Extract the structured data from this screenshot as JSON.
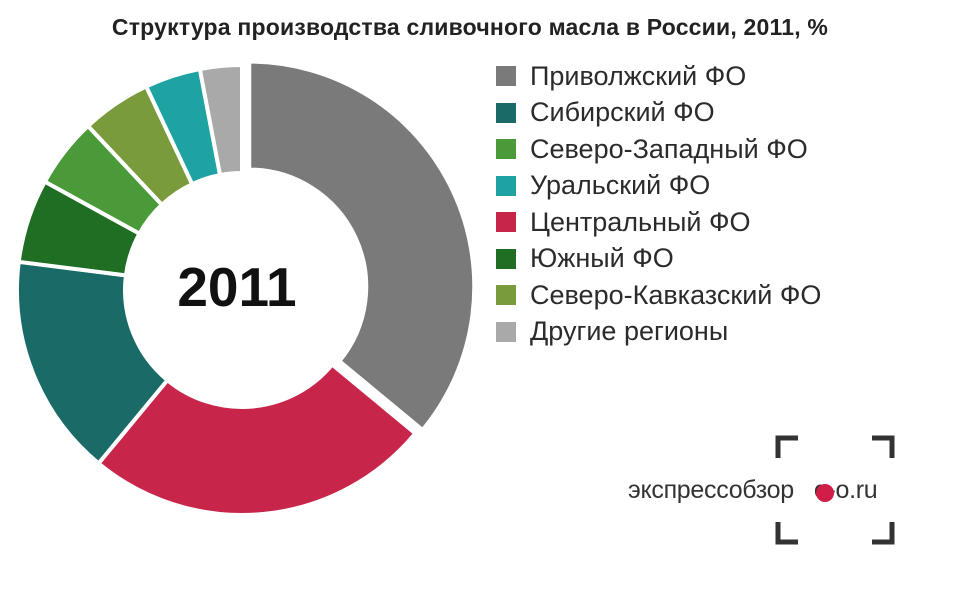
{
  "title": "Структура производства сливочного масла в России, 2011, %",
  "center_label": "2011",
  "logo_text": "экспрессобзор",
  "logo_suffix": "e-o.ru",
  "chart_data": {
    "type": "pie",
    "title": "Структура производства сливочного масла в России, 2011, %",
    "center_label": "2011",
    "legend_position": "right",
    "slices": [
      {
        "label": "Приволжский ФО",
        "value": 36,
        "color": "#7a7a7a"
      },
      {
        "label": "Центральный ФО",
        "value": 25,
        "color": "#c8254a"
      },
      {
        "label": "Сибирский ФО",
        "value": 16,
        "color": "#1a6a68"
      },
      {
        "label": "Южный ФО",
        "value": 6,
        "color": "#1f6e23"
      },
      {
        "label": "Северо-Западный ФО",
        "value": 5,
        "color": "#4a9a3a"
      },
      {
        "label": "Северо-Кавказский ФО",
        "value": 5,
        "color": "#7a9b3b"
      },
      {
        "label": "Уральский ФО",
        "value": 4,
        "color": "#1fa2a2"
      },
      {
        "label": "Другие регионы",
        "value": 3,
        "color": "#a9a9a9"
      }
    ],
    "legend": [
      {
        "label": "Приволжский ФО",
        "color": "#7a7a7a"
      },
      {
        "label": "Сибирский ФО",
        "color": "#1a6a68"
      },
      {
        "label": "Северо-Западный ФО",
        "color": "#4a9a3a"
      },
      {
        "label": "Уральский ФО",
        "color": "#1fa2a2"
      },
      {
        "label": "Центральный ФО",
        "color": "#c8254a"
      },
      {
        "label": "Южный ФО",
        "color": "#1f6e23"
      },
      {
        "label": "Северо-Кавказский ФО",
        "color": "#7a9b3b"
      },
      {
        "label": "Другие регионы",
        "color": "#a9a9a9"
      }
    ]
  }
}
